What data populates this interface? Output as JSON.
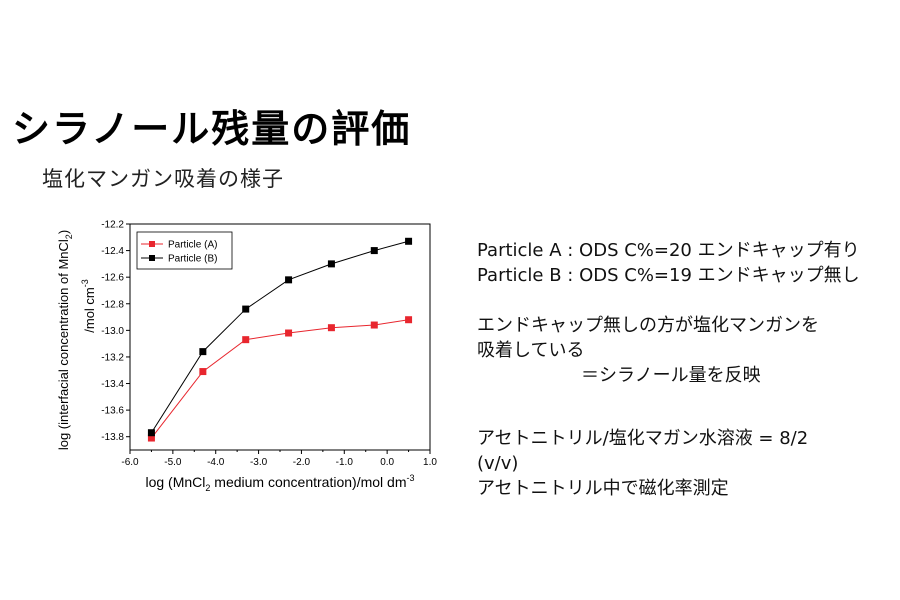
{
  "title": "シラノール残量の評価",
  "subtitle": "塩化マンガン吸着の様子",
  "notes": {
    "line1": "Particle A : ODS C%=20 エンドキャップ有り",
    "line2": "Particle B : ODS C%=19 エンドキャップ無し",
    "line3": "エンドキャップ無しの方が塩化マンガンを",
    "line4": "吸着している",
    "line5": "＝シラノール量を反映",
    "line6": "アセトニトリル/塩化マガン水溶液 = 8/2",
    "line7": "(v/v)",
    "line8": "アセトニトリル中で磁化率測定"
  },
  "chart_data": {
    "type": "line",
    "x": [
      -5.5,
      -4.3,
      -3.3,
      -2.3,
      -1.3,
      -0.3,
      0.5
    ],
    "series": [
      {
        "name": "Particle (A)",
        "color": "#e8262e",
        "values": [
          -13.81,
          -13.31,
          -13.07,
          -13.02,
          -12.98,
          -12.96,
          -12.92
        ]
      },
      {
        "name": "Particle (B)",
        "color": "#000000",
        "values": [
          -13.77,
          -13.16,
          -12.84,
          -12.62,
          -12.5,
          -12.4,
          -12.33
        ]
      }
    ],
    "xlabel_pre": "log (MnCl",
    "xlabel_sub": "2",
    "xlabel_post": " medium concentration)/mol dm",
    "xlabel_sup": "-3",
    "ylabel_main": "log (interfacial concentration of MnCl",
    "ylabel_sub": "2",
    "ylabel_close": ")",
    "ylabel_unit": "/mol cm",
    "ylabel_unit_sup": "-3",
    "xlim": [
      -6.0,
      1.0
    ],
    "ylim": [
      -13.9,
      -12.2
    ],
    "xticks": [
      "-6.0",
      "-5.0",
      "-4.0",
      "-3.0",
      "-2.0",
      "-1.0",
      "0.0",
      "1.0"
    ],
    "xtick_values": [
      -6,
      -5,
      -4,
      -3,
      -2,
      -1,
      0,
      1
    ],
    "yticks": [
      "-12.2",
      "-12.4",
      "-12.6",
      "-12.8",
      "-13.0",
      "-13.2",
      "-13.4",
      "-13.6",
      "-13.8"
    ],
    "ytick_values": [
      -12.2,
      -12.4,
      -12.6,
      -12.8,
      -13.0,
      -13.2,
      -13.4,
      -13.6,
      -13.8
    ],
    "legend": "top-left",
    "grid": false
  }
}
